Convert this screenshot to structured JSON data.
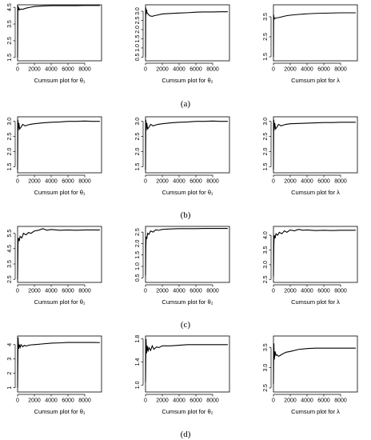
{
  "figure": {
    "panel_labels": [
      "(a)",
      "(b)",
      "(c)",
      "(d)"
    ]
  },
  "chart_data": [
    {
      "row": 0,
      "col": 0,
      "type": "line",
      "xlabel": "Cumsum plot for  θ₁",
      "xlim": [
        0,
        10000
      ],
      "ylim": [
        1.3,
        4.65
      ],
      "xticks": [
        0,
        2000,
        4000,
        6000,
        8000
      ],
      "yticks": [
        1.5,
        2.5,
        3.5,
        4.5
      ],
      "ytick_labels": [
        "1.5",
        "2.5",
        "3.5",
        "4.5"
      ],
      "grid": false,
      "x": [
        1,
        40,
        80,
        150,
        250,
        400,
        600,
        1000,
        1500,
        2000,
        3000,
        4000,
        5000,
        6000,
        7000,
        8000,
        9000,
        9800
      ],
      "y": [
        1.5,
        4.6,
        4.3,
        4.45,
        4.35,
        4.4,
        4.38,
        4.45,
        4.5,
        4.55,
        4.58,
        4.6,
        4.6,
        4.6,
        4.6,
        4.61,
        4.61,
        4.61
      ]
    },
    {
      "row": 0,
      "col": 1,
      "type": "line",
      "xlabel": "Cumsum plot for  θ₂",
      "xlim": [
        0,
        10000
      ],
      "ylim": [
        0.3,
        3.35
      ],
      "xticks": [
        0,
        2000,
        4000,
        6000,
        8000
      ],
      "yticks": [
        0.5,
        1.0,
        1.5,
        2.0,
        2.5,
        3.0
      ],
      "ytick_labels": [
        "0.5",
        "1.0",
        "1.5",
        "2.0",
        "2.5",
        "3.0"
      ],
      "grid": false,
      "x": [
        1,
        30,
        60,
        100,
        200,
        300,
        500,
        800,
        1000,
        1500,
        2000,
        3000,
        4000,
        5000,
        6000,
        7000,
        8000,
        9000,
        9800
      ],
      "y": [
        0.5,
        3.2,
        2.8,
        3.1,
        2.9,
        2.85,
        2.75,
        2.72,
        2.75,
        2.8,
        2.85,
        2.88,
        2.9,
        2.92,
        2.95,
        2.96,
        2.96,
        2.97,
        2.97
      ]
    },
    {
      "row": 0,
      "col": 2,
      "type": "line",
      "xlabel": "Cumsum plot for  λ",
      "xlim": [
        0,
        10000
      ],
      "ylim": [
        1.3,
        4.1
      ],
      "xticks": [
        0,
        2000,
        4000,
        6000,
        8000
      ],
      "yticks": [
        1.5,
        2.5,
        3.5
      ],
      "ytick_labels": [
        "1.5",
        "2.5",
        "3.5"
      ],
      "grid": false,
      "x": [
        1,
        30,
        60,
        100,
        200,
        400,
        600,
        1000,
        1500,
        2000,
        3000,
        4000,
        5000,
        6000,
        7000,
        8000,
        9000,
        9800
      ],
      "y": [
        1.5,
        3.6,
        3.35,
        3.45,
        3.42,
        3.45,
        3.46,
        3.5,
        3.55,
        3.58,
        3.62,
        3.65,
        3.67,
        3.68,
        3.69,
        3.7,
        3.7,
        3.7
      ]
    },
    {
      "row": 1,
      "col": 0,
      "type": "line",
      "xlabel": "Cumsum plot for  θ₁",
      "xlim": [
        0,
        10000
      ],
      "ylim": [
        1.3,
        3.15
      ],
      "xticks": [
        0,
        2000,
        4000,
        6000,
        8000
      ],
      "yticks": [
        1.5,
        2.0,
        2.5,
        3.0
      ],
      "ytick_labels": [
        "1.5",
        "2.0",
        "2.5",
        "3.0"
      ],
      "grid": false,
      "x": [
        1,
        40,
        80,
        150,
        250,
        400,
        600,
        900,
        1200,
        1500,
        2000,
        3000,
        4000,
        5000,
        6000,
        7000,
        8000,
        9000,
        9800
      ],
      "y": [
        1.4,
        3.05,
        2.7,
        2.95,
        2.75,
        2.8,
        2.9,
        2.85,
        2.88,
        2.9,
        2.92,
        2.95,
        2.97,
        2.98,
        3.0,
        3.0,
        3.01,
        3.0,
        3.0
      ]
    },
    {
      "row": 1,
      "col": 1,
      "type": "line",
      "xlabel": "Cumsum plot for  θ₁",
      "xlim": [
        0,
        10000
      ],
      "ylim": [
        1.3,
        3.15
      ],
      "xticks": [
        0,
        2000,
        4000,
        6000,
        8000
      ],
      "yticks": [
        1.5,
        2.0,
        2.5,
        3.0
      ],
      "ytick_labels": [
        "1.5",
        "2.0",
        "2.5",
        "3.0"
      ],
      "grid": false,
      "x": [
        1,
        40,
        80,
        150,
        250,
        400,
        600,
        900,
        1200,
        1500,
        2000,
        3000,
        4000,
        5000,
        6000,
        7000,
        8000,
        9000,
        9800
      ],
      "y": [
        1.4,
        3.05,
        2.7,
        2.95,
        2.75,
        2.8,
        2.9,
        2.85,
        2.88,
        2.9,
        2.92,
        2.95,
        2.97,
        2.98,
        3.0,
        3.0,
        3.01,
        3.0,
        3.0
      ]
    },
    {
      "row": 1,
      "col": 2,
      "type": "line",
      "xlabel": "Cumsum plot for  λ",
      "xlim": [
        0,
        10000
      ],
      "ylim": [
        1.3,
        3.15
      ],
      "xticks": [
        0,
        2000,
        4000,
        6000,
        8000
      ],
      "yticks": [
        1.5,
        2.0,
        2.5,
        3.0
      ],
      "ytick_labels": [
        "1.5",
        "2.0",
        "2.5",
        "3.0"
      ],
      "grid": false,
      "x": [
        1,
        40,
        80,
        150,
        250,
        400,
        600,
        900,
        1200,
        1500,
        2000,
        3000,
        4000,
        5000,
        6000,
        7000,
        8000,
        9000,
        9800
      ],
      "y": [
        1.4,
        3.05,
        2.7,
        2.95,
        2.75,
        2.8,
        2.9,
        2.85,
        2.88,
        2.9,
        2.92,
        2.93,
        2.94,
        2.95,
        2.96,
        2.96,
        2.97,
        2.97,
        2.97
      ]
    },
    {
      "row": 2,
      "col": 0,
      "type": "line",
      "xlabel": "Cumsum plot for  θ₁",
      "xlim": [
        0,
        10000
      ],
      "ylim": [
        2.3,
        5.95
      ],
      "xticks": [
        0,
        2000,
        4000,
        6000,
        8000
      ],
      "yticks": [
        2.5,
        3.5,
        4.5,
        5.5
      ],
      "ytick_labels": [
        "2.5",
        "3.5",
        "4.5",
        "5.5"
      ],
      "grid": false,
      "x": [
        1,
        50,
        100,
        200,
        300,
        500,
        700,
        1000,
        1300,
        1600,
        2000,
        2500,
        3000,
        3500,
        4000,
        5000,
        6000,
        7000,
        8000,
        9000,
        9800
      ],
      "y": [
        2.5,
        4.8,
        5.2,
        5.0,
        5.3,
        5.2,
        5.5,
        5.4,
        5.55,
        5.5,
        5.65,
        5.7,
        5.8,
        5.7,
        5.75,
        5.7,
        5.72,
        5.7,
        5.72,
        5.72,
        5.72
      ]
    },
    {
      "row": 2,
      "col": 1,
      "type": "line",
      "xlabel": "Cumsum plot for  θ₂",
      "xlim": [
        0,
        10000
      ],
      "ylim": [
        0.3,
        2.75
      ],
      "xticks": [
        0,
        2000,
        4000,
        6000,
        8000
      ],
      "yticks": [
        0.5,
        1.0,
        1.5,
        2.0,
        2.5
      ],
      "ytick_labels": [
        "0.5",
        "1.0",
        "1.5",
        "2.0",
        "2.5"
      ],
      "grid": false,
      "x": [
        1,
        40,
        80,
        150,
        250,
        400,
        600,
        900,
        1200,
        1600,
        2000,
        3000,
        4000,
        5000,
        6000,
        7000,
        8000,
        9000,
        9800
      ],
      "y": [
        0.6,
        1.9,
        2.3,
        2.2,
        2.45,
        2.4,
        2.55,
        2.5,
        2.6,
        2.58,
        2.62,
        2.64,
        2.65,
        2.65,
        2.65,
        2.66,
        2.66,
        2.66,
        2.66
      ]
    },
    {
      "row": 2,
      "col": 2,
      "type": "line",
      "xlabel": "Cumsum plot for  λ",
      "xlim": [
        0,
        10000
      ],
      "ylim": [
        2.4,
        4.3
      ],
      "xticks": [
        0,
        2000,
        4000,
        6000,
        8000
      ],
      "yticks": [
        2.5,
        3.0,
        3.5,
        4.0
      ],
      "ytick_labels": [
        "2.5",
        "3.0",
        "3.5",
        "4.0"
      ],
      "grid": false,
      "x": [
        1,
        50,
        100,
        200,
        300,
        500,
        700,
        1000,
        1300,
        1600,
        2000,
        2500,
        3000,
        3500,
        4000,
        5000,
        6000,
        7000,
        8000,
        9000,
        9800
      ],
      "y": [
        2.6,
        3.7,
        4.0,
        3.9,
        4.05,
        4.0,
        4.1,
        4.05,
        4.15,
        4.1,
        4.18,
        4.15,
        4.2,
        4.17,
        4.18,
        4.16,
        4.17,
        4.16,
        4.17,
        4.17,
        4.17
      ]
    },
    {
      "row": 3,
      "col": 0,
      "type": "line",
      "xlabel": "Cumsum plot for  θ₁",
      "xlim": [
        0,
        10000
      ],
      "ylim": [
        0.7,
        4.6
      ],
      "xticks": [
        0,
        2000,
        4000,
        6000,
        8000
      ],
      "yticks": [
        1,
        2,
        3,
        4
      ],
      "ytick_labels": [
        "1",
        "2",
        "3",
        "4"
      ],
      "grid": false,
      "x": [
        1,
        60,
        120,
        200,
        300,
        400,
        600,
        800,
        1000,
        1500,
        2000,
        3000,
        4000,
        5000,
        6000,
        7000,
        8000,
        9000,
        9800
      ],
      "y": [
        1.0,
        4.5,
        3.7,
        4.0,
        3.8,
        4.0,
        3.85,
        3.95,
        3.9,
        3.98,
        4.0,
        4.05,
        4.1,
        4.12,
        4.15,
        4.15,
        4.15,
        4.15,
        4.14
      ]
    },
    {
      "row": 3,
      "col": 1,
      "type": "line",
      "xlabel": "Cumsum plot for  θ₂",
      "xlim": [
        0,
        10000
      ],
      "ylim": [
        0.88,
        1.85
      ],
      "xticks": [
        0,
        2000,
        4000,
        6000,
        8000
      ],
      "yticks": [
        1.0,
        1.4,
        1.8
      ],
      "ytick_labels": [
        "1.0",
        "1.4",
        "1.8"
      ],
      "grid": false,
      "x": [
        1,
        60,
        120,
        200,
        300,
        400,
        600,
        800,
        1000,
        1300,
        1600,
        2000,
        3000,
        4000,
        5000,
        6000,
        7000,
        8000,
        9000,
        9800
      ],
      "y": [
        1.05,
        1.8,
        1.55,
        1.68,
        1.58,
        1.65,
        1.6,
        1.68,
        1.62,
        1.66,
        1.65,
        1.68,
        1.68,
        1.69,
        1.7,
        1.7,
        1.7,
        1.7,
        1.7,
        1.7
      ]
    },
    {
      "row": 3,
      "col": 2,
      "type": "line",
      "xlabel": "Cumsum plot for  λ",
      "xlim": [
        0,
        10000
      ],
      "ylim": [
        2.4,
        3.78
      ],
      "xticks": [
        0,
        2000,
        4000,
        6000,
        8000
      ],
      "yticks": [
        2.5,
        3.0,
        3.5
      ],
      "ytick_labels": [
        "2.5",
        "3.0",
        "3.5"
      ],
      "grid": false,
      "x": [
        1,
        50,
        100,
        200,
        300,
        400,
        600,
        800,
        1000,
        1500,
        2000,
        3000,
        4000,
        5000,
        6000,
        7000,
        8000,
        9000,
        9800
      ],
      "y": [
        2.6,
        3.6,
        3.2,
        3.4,
        3.3,
        3.32,
        3.28,
        3.3,
        3.33,
        3.38,
        3.4,
        3.45,
        3.47,
        3.48,
        3.48,
        3.48,
        3.48,
        3.48,
        3.48
      ]
    }
  ]
}
